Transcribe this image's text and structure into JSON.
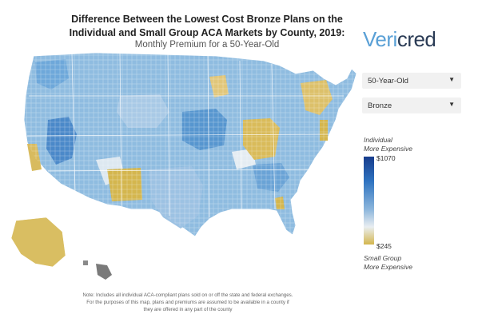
{
  "header": {
    "title_line1": "Difference Between the Lowest Cost Bronze Plans on the",
    "title_line2": "Individual and Small Group ACA Markets by County, 2019:",
    "subtitle": "Monthly Premium for a 50-Year-Old"
  },
  "logo": {
    "part1": "Veri",
    "part2": "cred"
  },
  "controls": {
    "age_select": {
      "value": "50-Year-Old"
    },
    "metal_select": {
      "value": "Bronze"
    }
  },
  "legend": {
    "top_note_line1": "Individual",
    "top_note_line2": "More Expensive",
    "max_value": "$1070",
    "min_value": "$245",
    "bottom_note_line1": "Small Group",
    "bottom_note_line2": "More Expensive",
    "colors": {
      "high": "#173c8c",
      "mid": "#8cb6dc",
      "neutral": "#e9eef1",
      "low": "#d4b64e"
    }
  },
  "footnote": {
    "line1": "Note: Includes all individual ACA-compliant plans sold on or off the state and federal exchanges.",
    "line2": "For the purposes of this map, plans and premiums are assumed to be available in a county if",
    "line3": "they are offered in any part of the county"
  }
}
